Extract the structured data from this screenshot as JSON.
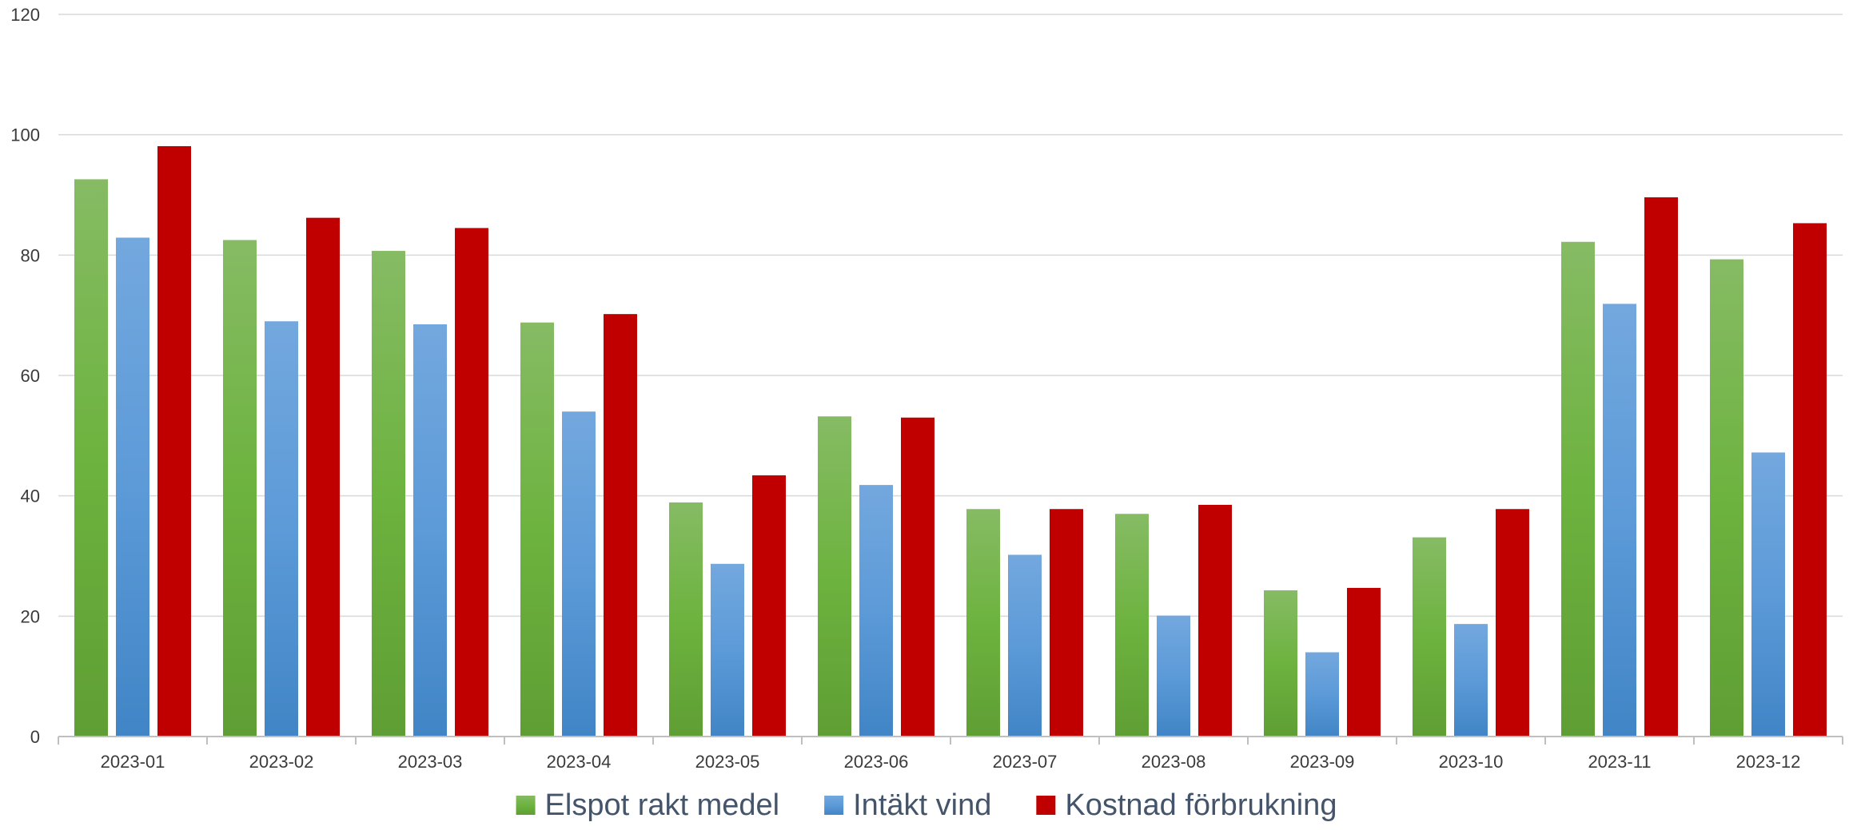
{
  "chart_data": {
    "type": "bar",
    "title": "",
    "xlabel": "",
    "ylabel": "",
    "ylim": [
      0,
      120
    ],
    "yticks": [
      0,
      20,
      40,
      60,
      80,
      100,
      120
    ],
    "grid": true,
    "legend_position": "bottom",
    "categories": [
      "2023-01",
      "2023-02",
      "2023-03",
      "2023-04",
      "2023-05",
      "2023-06",
      "2023-07",
      "2023-08",
      "2023-09",
      "2023-10",
      "2023-11",
      "2023-12"
    ],
    "series": [
      {
        "name": "Elspot rakt medel",
        "color": "#70ad47",
        "values": [
          92.6,
          82.5,
          80.7,
          68.8,
          38.9,
          53.2,
          37.8,
          37.0,
          24.3,
          33.1,
          82.2,
          79.3
        ]
      },
      {
        "name": "Intäkt vind",
        "color": "#5b9bd5",
        "values": [
          82.9,
          69.0,
          68.5,
          54.0,
          28.7,
          41.8,
          30.2,
          20.1,
          14.0,
          18.7,
          71.9,
          47.2
        ]
      },
      {
        "name": "Kostnad förbrukning",
        "color": "#c00000",
        "values": [
          98.1,
          86.2,
          84.5,
          70.2,
          43.4,
          53.0,
          37.8,
          38.5,
          24.7,
          37.8,
          89.6,
          85.3
        ]
      }
    ]
  }
}
